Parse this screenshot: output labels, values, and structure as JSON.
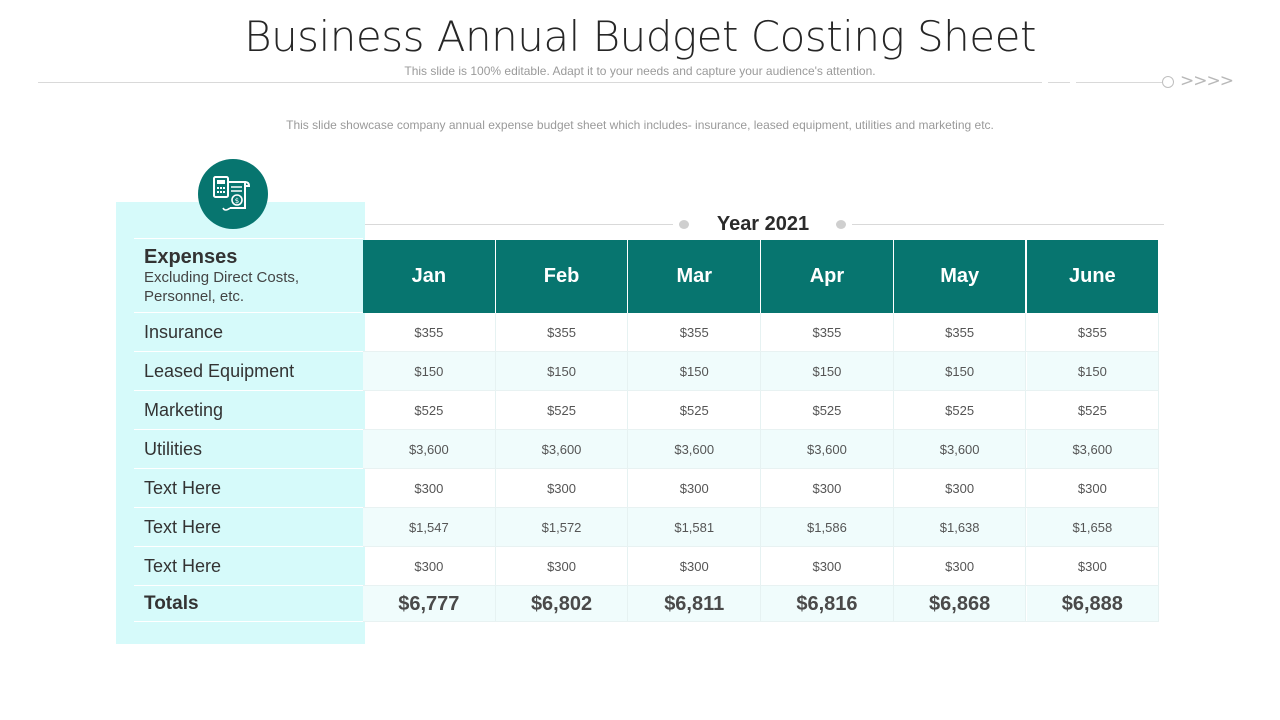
{
  "slide": {
    "title": "Business Annual Budget Costing Sheet",
    "subtitle": "This slide is 100% editable. Adapt it to your needs and capture your audience's attention.",
    "description": "This slide showcase company annual expense budget sheet which includes- insurance, leased equipment, utilities and marketing etc.",
    "decoration_chevrons": ">>>>"
  },
  "icon": {
    "name": "calculator-invoice-icon",
    "color": "#07756f"
  },
  "table": {
    "year_label": "Year 2021",
    "header": {
      "title": "Expenses",
      "subtitle": "Excluding Direct Costs, Personnel, etc."
    },
    "months": [
      "Jan",
      "Feb",
      "Mar",
      "Apr",
      "May",
      "June"
    ],
    "rows": [
      {
        "label": "Insurance",
        "values": [
          "$355",
          "$355",
          "$355",
          "$355",
          "$355",
          "$355"
        ]
      },
      {
        "label": "Leased Equipment",
        "values": [
          "$150",
          "$150",
          "$150",
          "$150",
          "$150",
          "$150"
        ]
      },
      {
        "label": "Marketing",
        "values": [
          "$525",
          "$525",
          "$525",
          "$525",
          "$525",
          "$525"
        ]
      },
      {
        "label": "Utilities",
        "values": [
          "$3,600",
          "$3,600",
          "$3,600",
          "$3,600",
          "$3,600",
          "$3,600"
        ]
      },
      {
        "label": "Text Here",
        "values": [
          "$300",
          "$300",
          "$300",
          "$300",
          "$300",
          "$300"
        ]
      },
      {
        "label": "Text Here",
        "values": [
          "$1,547",
          "$1,572",
          "$1,581",
          "$1,586",
          "$1,638",
          "$1,658"
        ]
      },
      {
        "label": "Text Here",
        "values": [
          "$300",
          "$300",
          "$300",
          "$300",
          "$300",
          "$300"
        ]
      }
    ],
    "totals": {
      "label": "Totals",
      "values": [
        "$6,777",
        "$6,802",
        "$6,811",
        "$6,816",
        "$6,868",
        "$6,888"
      ]
    }
  },
  "colors": {
    "accent": "#07756f",
    "panel": "#d6fafa",
    "stripe": "#f0fcfc"
  }
}
